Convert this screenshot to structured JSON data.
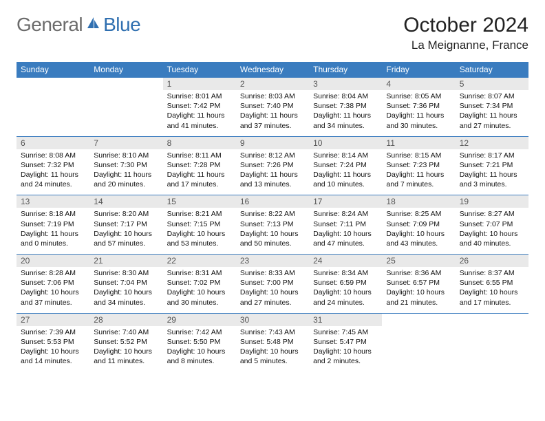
{
  "logo": {
    "part1": "General",
    "part2": "Blue",
    "color1": "#6b6b6b",
    "color2": "#2f6fb0",
    "icon_color": "#2f6fb0"
  },
  "title": "October 2024",
  "location": "La Meignanne, France",
  "dow": [
    "Sunday",
    "Monday",
    "Tuesday",
    "Wednesday",
    "Thursday",
    "Friday",
    "Saturday"
  ],
  "header_bg": "#3a7cbf",
  "daynum_bg": "#e9e9e9",
  "border_color": "#3a7cbf",
  "font_family": "Arial",
  "daynum_fontsize": 12,
  "body_fontsize": 10.5,
  "weeks": [
    [
      {
        "n": "",
        "lines": []
      },
      {
        "n": "",
        "lines": []
      },
      {
        "n": "1",
        "lines": [
          "Sunrise: 8:01 AM",
          "Sunset: 7:42 PM",
          "Daylight: 11 hours and 41 minutes."
        ]
      },
      {
        "n": "2",
        "lines": [
          "Sunrise: 8:03 AM",
          "Sunset: 7:40 PM",
          "Daylight: 11 hours and 37 minutes."
        ]
      },
      {
        "n": "3",
        "lines": [
          "Sunrise: 8:04 AM",
          "Sunset: 7:38 PM",
          "Daylight: 11 hours and 34 minutes."
        ]
      },
      {
        "n": "4",
        "lines": [
          "Sunrise: 8:05 AM",
          "Sunset: 7:36 PM",
          "Daylight: 11 hours and 30 minutes."
        ]
      },
      {
        "n": "5",
        "lines": [
          "Sunrise: 8:07 AM",
          "Sunset: 7:34 PM",
          "Daylight: 11 hours and 27 minutes."
        ]
      }
    ],
    [
      {
        "n": "6",
        "lines": [
          "Sunrise: 8:08 AM",
          "Sunset: 7:32 PM",
          "Daylight: 11 hours and 24 minutes."
        ]
      },
      {
        "n": "7",
        "lines": [
          "Sunrise: 8:10 AM",
          "Sunset: 7:30 PM",
          "Daylight: 11 hours and 20 minutes."
        ]
      },
      {
        "n": "8",
        "lines": [
          "Sunrise: 8:11 AM",
          "Sunset: 7:28 PM",
          "Daylight: 11 hours and 17 minutes."
        ]
      },
      {
        "n": "9",
        "lines": [
          "Sunrise: 8:12 AM",
          "Sunset: 7:26 PM",
          "Daylight: 11 hours and 13 minutes."
        ]
      },
      {
        "n": "10",
        "lines": [
          "Sunrise: 8:14 AM",
          "Sunset: 7:24 PM",
          "Daylight: 11 hours and 10 minutes."
        ]
      },
      {
        "n": "11",
        "lines": [
          "Sunrise: 8:15 AM",
          "Sunset: 7:23 PM",
          "Daylight: 11 hours and 7 minutes."
        ]
      },
      {
        "n": "12",
        "lines": [
          "Sunrise: 8:17 AM",
          "Sunset: 7:21 PM",
          "Daylight: 11 hours and 3 minutes."
        ]
      }
    ],
    [
      {
        "n": "13",
        "lines": [
          "Sunrise: 8:18 AM",
          "Sunset: 7:19 PM",
          "Daylight: 11 hours and 0 minutes."
        ]
      },
      {
        "n": "14",
        "lines": [
          "Sunrise: 8:20 AM",
          "Sunset: 7:17 PM",
          "Daylight: 10 hours and 57 minutes."
        ]
      },
      {
        "n": "15",
        "lines": [
          "Sunrise: 8:21 AM",
          "Sunset: 7:15 PM",
          "Daylight: 10 hours and 53 minutes."
        ]
      },
      {
        "n": "16",
        "lines": [
          "Sunrise: 8:22 AM",
          "Sunset: 7:13 PM",
          "Daylight: 10 hours and 50 minutes."
        ]
      },
      {
        "n": "17",
        "lines": [
          "Sunrise: 8:24 AM",
          "Sunset: 7:11 PM",
          "Daylight: 10 hours and 47 minutes."
        ]
      },
      {
        "n": "18",
        "lines": [
          "Sunrise: 8:25 AM",
          "Sunset: 7:09 PM",
          "Daylight: 10 hours and 43 minutes."
        ]
      },
      {
        "n": "19",
        "lines": [
          "Sunrise: 8:27 AM",
          "Sunset: 7:07 PM",
          "Daylight: 10 hours and 40 minutes."
        ]
      }
    ],
    [
      {
        "n": "20",
        "lines": [
          "Sunrise: 8:28 AM",
          "Sunset: 7:06 PM",
          "Daylight: 10 hours and 37 minutes."
        ]
      },
      {
        "n": "21",
        "lines": [
          "Sunrise: 8:30 AM",
          "Sunset: 7:04 PM",
          "Daylight: 10 hours and 34 minutes."
        ]
      },
      {
        "n": "22",
        "lines": [
          "Sunrise: 8:31 AM",
          "Sunset: 7:02 PM",
          "Daylight: 10 hours and 30 minutes."
        ]
      },
      {
        "n": "23",
        "lines": [
          "Sunrise: 8:33 AM",
          "Sunset: 7:00 PM",
          "Daylight: 10 hours and 27 minutes."
        ]
      },
      {
        "n": "24",
        "lines": [
          "Sunrise: 8:34 AM",
          "Sunset: 6:59 PM",
          "Daylight: 10 hours and 24 minutes."
        ]
      },
      {
        "n": "25",
        "lines": [
          "Sunrise: 8:36 AM",
          "Sunset: 6:57 PM",
          "Daylight: 10 hours and 21 minutes."
        ]
      },
      {
        "n": "26",
        "lines": [
          "Sunrise: 8:37 AM",
          "Sunset: 6:55 PM",
          "Daylight: 10 hours and 17 minutes."
        ]
      }
    ],
    [
      {
        "n": "27",
        "lines": [
          "Sunrise: 7:39 AM",
          "Sunset: 5:53 PM",
          "Daylight: 10 hours and 14 minutes."
        ]
      },
      {
        "n": "28",
        "lines": [
          "Sunrise: 7:40 AM",
          "Sunset: 5:52 PM",
          "Daylight: 10 hours and 11 minutes."
        ]
      },
      {
        "n": "29",
        "lines": [
          "Sunrise: 7:42 AM",
          "Sunset: 5:50 PM",
          "Daylight: 10 hours and 8 minutes."
        ]
      },
      {
        "n": "30",
        "lines": [
          "Sunrise: 7:43 AM",
          "Sunset: 5:48 PM",
          "Daylight: 10 hours and 5 minutes."
        ]
      },
      {
        "n": "31",
        "lines": [
          "Sunrise: 7:45 AM",
          "Sunset: 5:47 PM",
          "Daylight: 10 hours and 2 minutes."
        ]
      },
      {
        "n": "",
        "lines": []
      },
      {
        "n": "",
        "lines": []
      }
    ]
  ]
}
